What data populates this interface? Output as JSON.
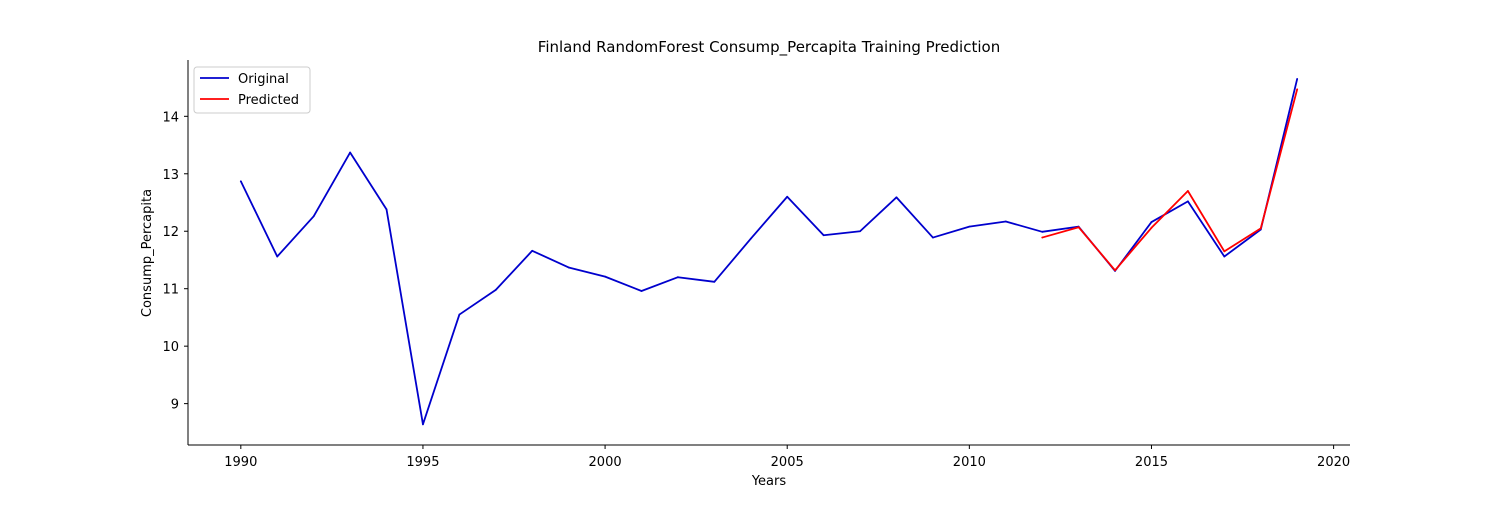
{
  "chart_data": {
    "type": "line",
    "title": "Finland RandomForest Consump_Percapita Training Prediction",
    "xlabel": "Years",
    "ylabel": "Consump_Percapita",
    "xlim": [
      1988.55,
      2020.45
    ],
    "ylim": [
      8.28,
      14.98
    ],
    "xticks": [
      1990,
      1995,
      2000,
      2005,
      2010,
      2015,
      2020
    ],
    "yticks": [
      9,
      10,
      11,
      12,
      13,
      14
    ],
    "grid": false,
    "legend": "top-left",
    "series": [
      {
        "name": "Original",
        "color": "#0000cd",
        "x": [
          1990,
          1991,
          1992,
          1993,
          1994,
          1995,
          1996,
          1997,
          1998,
          1999,
          2000,
          2001,
          2002,
          2003,
          2004,
          2005,
          2006,
          2007,
          2008,
          2009,
          2010,
          2011,
          2012,
          2013,
          2014,
          2015,
          2016,
          2017,
          2018,
          2019
        ],
        "y": [
          12.87,
          11.56,
          12.26,
          13.37,
          12.38,
          8.64,
          10.55,
          10.98,
          11.66,
          11.37,
          11.21,
          10.96,
          11.2,
          11.12,
          11.87,
          12.6,
          11.93,
          12.0,
          12.59,
          11.89,
          12.08,
          12.17,
          11.99,
          12.08,
          11.31,
          12.16,
          12.52,
          11.56,
          12.03,
          14.65
        ]
      },
      {
        "name": "Predicted",
        "color": "#ff0000",
        "x": [
          2012,
          2013,
          2014,
          2015,
          2016,
          2017,
          2018,
          2019
        ],
        "y": [
          11.89,
          12.07,
          11.32,
          12.06,
          12.7,
          11.65,
          12.05,
          14.47
        ]
      }
    ]
  }
}
